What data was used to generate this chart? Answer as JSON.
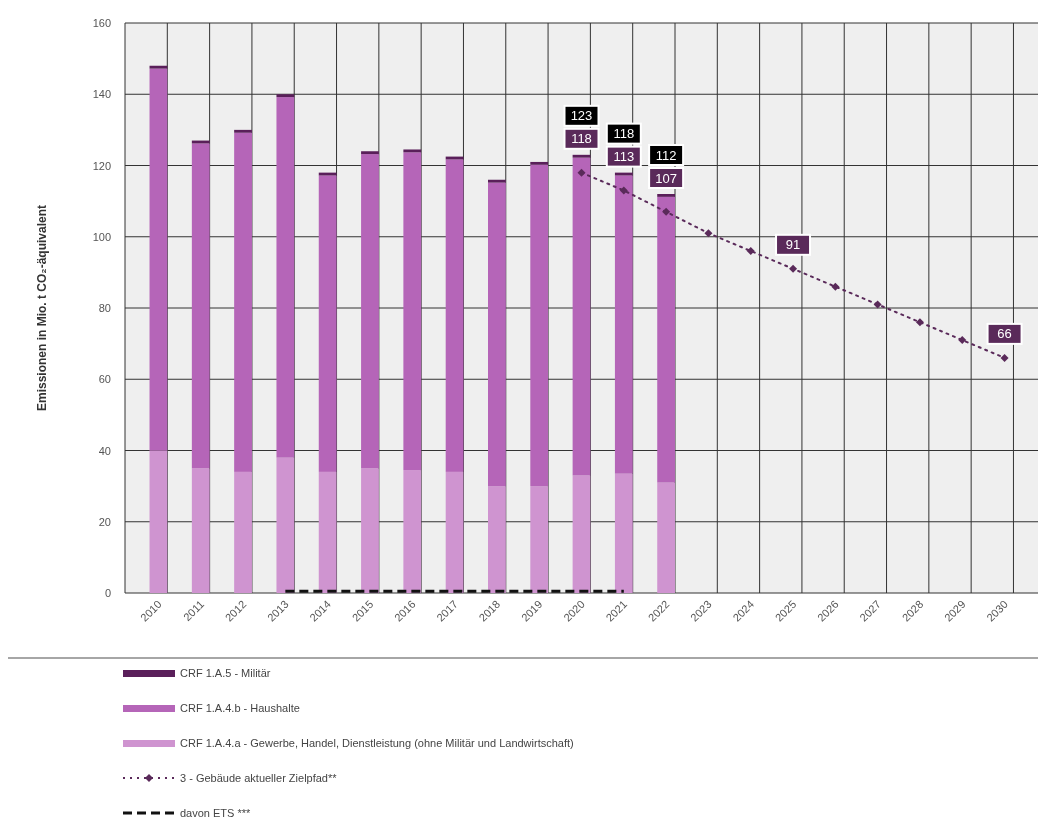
{
  "chart_data": {
    "type": "bar",
    "stacked": true,
    "ylabel": "Emissionen in Mio. t CO₂-äquivalent",
    "categories": [
      "2010",
      "2011",
      "2012",
      "2013",
      "2014",
      "2015",
      "2016",
      "2017",
      "2018",
      "2019",
      "2020",
      "2021",
      "2022",
      "2023",
      "2024",
      "2025",
      "2026",
      "2027",
      "2028",
      "2029",
      "2030"
    ],
    "series": [
      {
        "name": "CRF 1.A.4.a - Gewerbe, Handel, Dienstleistung (ohne Militär und Landwirtschaft)",
        "color": "#cf94d0",
        "values": [
          40,
          35,
          34,
          38,
          34,
          35,
          34.5,
          34,
          30,
          30,
          33,
          33.5,
          31,
          null,
          null,
          null,
          null,
          null,
          null,
          null,
          null
        ]
      },
      {
        "name": "CRF 1.A.4.b - Haushalte",
        "color": "#b565b8",
        "values": [
          107.2,
          91.2,
          95.2,
          101.2,
          83.2,
          88.2,
          89.2,
          87.7,
          85.2,
          90.2,
          89.2,
          83.7,
          80.2,
          null,
          null,
          null,
          null,
          null,
          null,
          null,
          null
        ]
      },
      {
        "name": "CRF 1.A.5 - Militär",
        "color": "#5a1f5a",
        "values": [
          0.8,
          0.8,
          0.8,
          0.8,
          0.8,
          0.8,
          0.8,
          0.8,
          0.8,
          0.8,
          0.8,
          0.8,
          0.8,
          null,
          null,
          null,
          null,
          null,
          null,
          null,
          null
        ]
      },
      {
        "name": "3 - Gebäude aktueller Zielpfad**",
        "type": "line",
        "color": "#5a2a5a",
        "line_style": "dotted",
        "marker": "diamond",
        "values": [
          null,
          null,
          null,
          null,
          null,
          null,
          null,
          null,
          null,
          null,
          118,
          113,
          107,
          101,
          96,
          91,
          86,
          81,
          76,
          71,
          66
        ],
        "value_labels": [
          null,
          null,
          null,
          null,
          null,
          null,
          null,
          null,
          null,
          null,
          "118",
          "113",
          "107",
          null,
          null,
          "91",
          null,
          null,
          null,
          null,
          "66"
        ]
      },
      {
        "name": "davon ETS ***",
        "type": "line",
        "color": "#111111",
        "line_style": "dashed",
        "marker": "none",
        "values": [
          null,
          null,
          null,
          0.5,
          0.5,
          0.5,
          0.5,
          0.5,
          0.5,
          0.5,
          0.5,
          0.5,
          null,
          null,
          null,
          null,
          null,
          null,
          null,
          null,
          null
        ]
      }
    ],
    "totals": [
      null,
      null,
      null,
      null,
      null,
      null,
      null,
      null,
      null,
      null,
      "123",
      "118",
      "112",
      null,
      null,
      null,
      null,
      null,
      null,
      null,
      null
    ],
    "ylim": [
      0,
      160
    ],
    "yticks": [
      0,
      20,
      40,
      60,
      80,
      100,
      120,
      140,
      160
    ],
    "grid": true,
    "legend": "bottom"
  }
}
